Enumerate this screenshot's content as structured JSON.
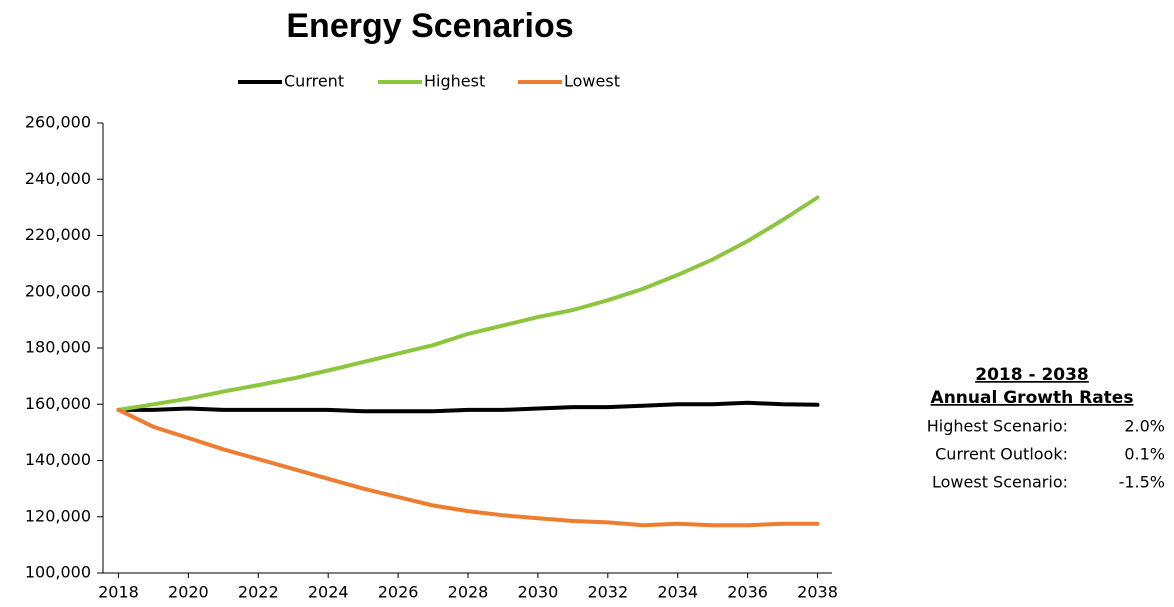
{
  "chart_data": {
    "type": "line",
    "title": "Energy Scenarios",
    "x": [
      2018,
      2019,
      2020,
      2021,
      2022,
      2023,
      2024,
      2025,
      2026,
      2027,
      2028,
      2029,
      2030,
      2031,
      2032,
      2033,
      2034,
      2035,
      2036,
      2037,
      2038
    ],
    "series": [
      {
        "name": "Current",
        "color": "#000000",
        "values": [
          158000,
          158000,
          158500,
          158000,
          158000,
          158000,
          158000,
          157500,
          157500,
          157500,
          158000,
          158000,
          158500,
          159000,
          159000,
          159500,
          160000,
          160000,
          160500,
          160000,
          159800
        ]
      },
      {
        "name": "Highest",
        "color": "#8cc63f",
        "values": [
          158000,
          160000,
          162000,
          164500,
          166800,
          169200,
          172000,
          175000,
          178000,
          181000,
          185000,
          188000,
          191000,
          193500,
          197000,
          201000,
          206000,
          211500,
          218000,
          225500,
          233500
        ]
      },
      {
        "name": "Lowest",
        "color": "#ed7d31",
        "values": [
          158000,
          152000,
          148000,
          144000,
          140500,
          137000,
          133500,
          130000,
          127000,
          124000,
          122000,
          120500,
          119500,
          118500,
          118000,
          117000,
          117500,
          117000,
          117000,
          117500,
          117500
        ]
      }
    ],
    "xlim": [
      2017.5,
      2038.5
    ],
    "xticks": [
      2018,
      2020,
      2022,
      2024,
      2026,
      2028,
      2030,
      2032,
      2034,
      2036,
      2038
    ],
    "ylim": [
      100000,
      260000
    ],
    "yticks": [
      {
        "value": 100000,
        "label": "100,000"
      },
      {
        "value": 120000,
        "label": "120,000"
      },
      {
        "value": 140000,
        "label": "140,000"
      },
      {
        "value": 160000,
        "label": "160,000"
      },
      {
        "value": 180000,
        "label": "180,000"
      },
      {
        "value": 200000,
        "label": "200,000"
      },
      {
        "value": 220000,
        "label": "220,000"
      },
      {
        "value": 240000,
        "label": "240,000"
      },
      {
        "value": 260000,
        "label": "260,000"
      }
    ],
    "grid": false,
    "legend": "top",
    "annotation": {
      "heading": [
        "2018 - 2038",
        "Annual Growth Rates"
      ],
      "rows": [
        [
          "Highest Scenario:",
          "2.0%"
        ],
        [
          "Current Outlook:",
          "0.1%"
        ],
        [
          "Lowest Scenario:",
          "-1.5%"
        ]
      ]
    }
  }
}
